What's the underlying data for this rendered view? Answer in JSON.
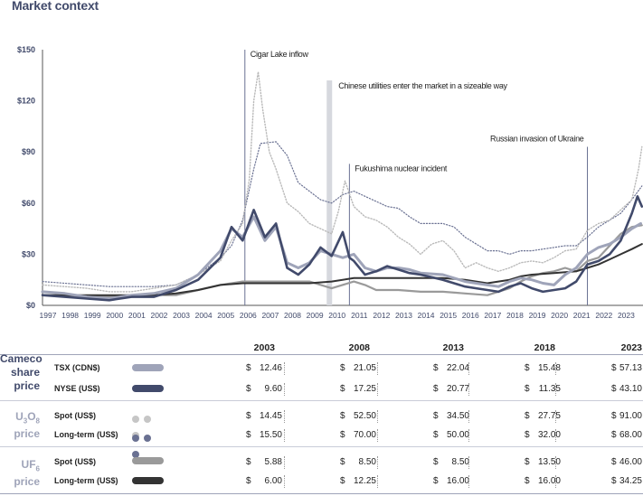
{
  "title": "Market context",
  "colors": {
    "tsx": "#9fa4b9",
    "nyse": "#414a6b",
    "spot_u3o8": "#b9b9b9",
    "lt_u3o8": "#6a7192",
    "spot_uf6": "#9a9a9a",
    "lt_uf6": "#333333",
    "group": "#414a6b",
    "group_light": "#9fa4b9"
  },
  "chart_data": {
    "type": "line",
    "title": "Market context",
    "ylim": [
      0,
      150
    ],
    "xlim": [
      1997,
      2024
    ],
    "y_ticks": [
      "$0",
      "$30",
      "$60",
      "$90",
      "$120",
      "$150"
    ],
    "x_ticks": [
      "1997",
      "1998",
      "1999",
      "2000",
      "2001",
      "2002",
      "2003",
      "2004",
      "2005",
      "2006",
      "2007",
      "2008",
      "2009",
      "2010",
      "2011",
      "2012",
      "2013",
      "2014",
      "2015",
      "2016",
      "2017",
      "2018",
      "2019",
      "2020",
      "2021",
      "2022",
      "2023"
    ],
    "annotations": [
      {
        "label": "Cigar Lake  inflow",
        "x": 2006.1,
        "kind": "line"
      },
      {
        "label": "Chinese utilities enter the market in a sizeable way",
        "x": 2009.9,
        "kind": "band"
      },
      {
        "label": "Fukushima nuclear incident",
        "x": 2010.8,
        "kind": "line"
      },
      {
        "label": "Russian invasion of Ukraine",
        "x": 2021.5,
        "kind": "line"
      }
    ],
    "series": [
      {
        "name": "TSX (CDN$)",
        "key": "tsx",
        "style": "solid",
        "width": 3,
        "points": [
          [
            1997,
            8
          ],
          [
            1998,
            7
          ],
          [
            1999,
            5
          ],
          [
            2000,
            4
          ],
          [
            2001,
            6
          ],
          [
            2002,
            7
          ],
          [
            2003,
            10
          ],
          [
            2004,
            18
          ],
          [
            2005,
            32
          ],
          [
            2005.5,
            45
          ],
          [
            2006,
            40
          ],
          [
            2006.5,
            52
          ],
          [
            2007,
            38
          ],
          [
            2007.5,
            46
          ],
          [
            2008,
            25
          ],
          [
            2008.5,
            22
          ],
          [
            2009,
            25
          ],
          [
            2009.5,
            32
          ],
          [
            2010,
            30
          ],
          [
            2010.5,
            28
          ],
          [
            2011,
            30
          ],
          [
            2011.5,
            22
          ],
          [
            2012,
            20
          ],
          [
            2012.5,
            22
          ],
          [
            2013,
            22
          ],
          [
            2013.5,
            21
          ],
          [
            2014,
            19
          ],
          [
            2015,
            18
          ],
          [
            2015.5,
            16
          ],
          [
            2016,
            14
          ],
          [
            2016.5,
            13
          ],
          [
            2017,
            12
          ],
          [
            2017.5,
            11
          ],
          [
            2018,
            14
          ],
          [
            2018.5,
            16
          ],
          [
            2019,
            15
          ],
          [
            2019.5,
            13
          ],
          [
            2020,
            12
          ],
          [
            2020.5,
            18
          ],
          [
            2021,
            22
          ],
          [
            2021.5,
            30
          ],
          [
            2022,
            34
          ],
          [
            2022.5,
            36
          ],
          [
            2023,
            40
          ],
          [
            2023.5,
            45
          ],
          [
            2023.9,
            48
          ]
        ]
      },
      {
        "name": "NYSE (US$)",
        "key": "nyse",
        "style": "solid",
        "width": 2.6,
        "points": [
          [
            1997,
            6
          ],
          [
            1998,
            5
          ],
          [
            1999,
            4
          ],
          [
            2000,
            3
          ],
          [
            2001,
            5
          ],
          [
            2002,
            5
          ],
          [
            2003,
            9
          ],
          [
            2004,
            15
          ],
          [
            2005,
            28
          ],
          [
            2005.5,
            46
          ],
          [
            2006,
            38
          ],
          [
            2006.5,
            56
          ],
          [
            2007,
            40
          ],
          [
            2007.5,
            48
          ],
          [
            2008,
            22
          ],
          [
            2008.5,
            18
          ],
          [
            2009,
            24
          ],
          [
            2009.5,
            34
          ],
          [
            2010,
            29
          ],
          [
            2010.5,
            43
          ],
          [
            2010.8,
            28
          ],
          [
            2011,
            26
          ],
          [
            2011.5,
            18
          ],
          [
            2012,
            20
          ],
          [
            2012.5,
            23
          ],
          [
            2013,
            21
          ],
          [
            2013.5,
            19
          ],
          [
            2014,
            18
          ],
          [
            2015,
            15
          ],
          [
            2015.5,
            13
          ],
          [
            2016,
            11
          ],
          [
            2016.5,
            10
          ],
          [
            2017,
            9
          ],
          [
            2017.5,
            8
          ],
          [
            2018,
            11
          ],
          [
            2018.5,
            13
          ],
          [
            2019,
            10
          ],
          [
            2019.5,
            8
          ],
          [
            2020,
            9
          ],
          [
            2020.5,
            10
          ],
          [
            2021,
            14
          ],
          [
            2021.5,
            24
          ],
          [
            2022,
            26
          ],
          [
            2022.5,
            30
          ],
          [
            2023,
            38
          ],
          [
            2023.5,
            54
          ],
          [
            2023.75,
            64
          ],
          [
            2023.95,
            58
          ]
        ]
      },
      {
        "name": "Spot (US$)",
        "key": "spot_u3o8",
        "style": "dotted",
        "width": 1.4,
        "points": [
          [
            1997,
            12
          ],
          [
            1998,
            11
          ],
          [
            1999,
            10
          ],
          [
            2000,
            8
          ],
          [
            2001,
            8
          ],
          [
            2002,
            10
          ],
          [
            2003,
            12
          ],
          [
            2004,
            18
          ],
          [
            2005,
            26
          ],
          [
            2005.5,
            38
          ],
          [
            2006,
            48
          ],
          [
            2006.3,
            74
          ],
          [
            2006.5,
            120
          ],
          [
            2006.7,
            137
          ],
          [
            2006.9,
            115
          ],
          [
            2007.2,
            90
          ],
          [
            2007.5,
            80
          ],
          [
            2008,
            60
          ],
          [
            2008.5,
            55
          ],
          [
            2009,
            48
          ],
          [
            2009.5,
            45
          ],
          [
            2010,
            42
          ],
          [
            2010.3,
            55
          ],
          [
            2010.6,
            73
          ],
          [
            2011,
            58
          ],
          [
            2011.5,
            52
          ],
          [
            2012,
            50
          ],
          [
            2012.5,
            46
          ],
          [
            2013,
            40
          ],
          [
            2013.5,
            36
          ],
          [
            2014,
            30
          ],
          [
            2014.5,
            36
          ],
          [
            2015,
            38
          ],
          [
            2015.5,
            32
          ],
          [
            2016,
            22
          ],
          [
            2016.5,
            25
          ],
          [
            2017,
            22
          ],
          [
            2017.5,
            20
          ],
          [
            2018,
            22
          ],
          [
            2018.5,
            25
          ],
          [
            2019,
            26
          ],
          [
            2019.5,
            25
          ],
          [
            2020,
            28
          ],
          [
            2020.5,
            32
          ],
          [
            2021,
            33
          ],
          [
            2021.5,
            44
          ],
          [
            2022,
            48
          ],
          [
            2022.5,
            50
          ],
          [
            2023,
            56
          ],
          [
            2023.5,
            62
          ],
          [
            2023.8,
            80
          ],
          [
            2023.95,
            93
          ]
        ]
      },
      {
        "name": "Long-term (US$)",
        "key": "lt_u3o8",
        "style": "dotted",
        "width": 1.2,
        "points": [
          [
            1997,
            14
          ],
          [
            1998,
            13
          ],
          [
            1999,
            12
          ],
          [
            2000,
            11
          ],
          [
            2001,
            11
          ],
          [
            2002,
            11
          ],
          [
            2003,
            12
          ],
          [
            2004,
            18
          ],
          [
            2005,
            28
          ],
          [
            2005.5,
            35
          ],
          [
            2006,
            50
          ],
          [
            2006.5,
            80
          ],
          [
            2006.8,
            95
          ],
          [
            2007.5,
            96
          ],
          [
            2008,
            88
          ],
          [
            2008.5,
            72
          ],
          [
            2009,
            67
          ],
          [
            2009.5,
            62
          ],
          [
            2010,
            60
          ],
          [
            2010.5,
            65
          ],
          [
            2011,
            67
          ],
          [
            2011.5,
            64
          ],
          [
            2012,
            61
          ],
          [
            2012.5,
            58
          ],
          [
            2013,
            57
          ],
          [
            2013.5,
            52
          ],
          [
            2014,
            48
          ],
          [
            2015,
            48
          ],
          [
            2015.5,
            46
          ],
          [
            2016,
            40
          ],
          [
            2016.5,
            36
          ],
          [
            2017,
            32
          ],
          [
            2017.5,
            32
          ],
          [
            2018,
            30
          ],
          [
            2018.5,
            32
          ],
          [
            2019,
            32
          ],
          [
            2019.5,
            33
          ],
          [
            2020,
            34
          ],
          [
            2020.5,
            35
          ],
          [
            2021,
            35
          ],
          [
            2021.5,
            40
          ],
          [
            2022,
            46
          ],
          [
            2022.5,
            50
          ],
          [
            2023,
            54
          ],
          [
            2023.5,
            62
          ],
          [
            2023.95,
            70
          ]
        ]
      },
      {
        "name": "UF6 Spot (US$)",
        "key": "spot_uf6",
        "style": "solid",
        "width": 2.2,
        "points": [
          [
            1997,
            6
          ],
          [
            1998,
            6
          ],
          [
            1999,
            5
          ],
          [
            2000,
            5
          ],
          [
            2001,
            5
          ],
          [
            2002,
            6
          ],
          [
            2003,
            6
          ],
          [
            2004,
            9
          ],
          [
            2005,
            12
          ],
          [
            2006,
            14
          ],
          [
            2008,
            14
          ],
          [
            2009,
            14
          ],
          [
            2010,
            10
          ],
          [
            2011,
            14
          ],
          [
            2011.5,
            12
          ],
          [
            2012,
            9
          ],
          [
            2013,
            9
          ],
          [
            2014,
            8
          ],
          [
            2015,
            8
          ],
          [
            2016,
            7
          ],
          [
            2017,
            6
          ],
          [
            2018,
            10
          ],
          [
            2018.5,
            14
          ],
          [
            2019,
            17
          ],
          [
            2019.5,
            19
          ],
          [
            2020,
            20
          ],
          [
            2020.5,
            22
          ],
          [
            2021,
            20
          ],
          [
            2021.5,
            26
          ],
          [
            2022,
            28
          ],
          [
            2022.5,
            35
          ],
          [
            2023,
            42
          ],
          [
            2023.5,
            46
          ],
          [
            2023.95,
            47
          ]
        ]
      },
      {
        "name": "UF6 Long-term (US$)",
        "key": "lt_uf6",
        "style": "solid",
        "width": 2,
        "points": [
          [
            1997,
            6
          ],
          [
            1998,
            6
          ],
          [
            1999,
            6
          ],
          [
            2000,
            6
          ],
          [
            2001,
            6
          ],
          [
            2002,
            6
          ],
          [
            2003,
            7
          ],
          [
            2004,
            9
          ],
          [
            2005,
            12
          ],
          [
            2006,
            13
          ],
          [
            2007,
            13
          ],
          [
            2008,
            13
          ],
          [
            2009,
            13
          ],
          [
            2010,
            14
          ],
          [
            2011,
            16
          ],
          [
            2012,
            16
          ],
          [
            2013,
            16
          ],
          [
            2014,
            16
          ],
          [
            2015,
            16
          ],
          [
            2016,
            15
          ],
          [
            2017,
            13
          ],
          [
            2018,
            15
          ],
          [
            2018.5,
            17
          ],
          [
            2019,
            18
          ],
          [
            2020,
            19
          ],
          [
            2021,
            20
          ],
          [
            2021.5,
            22
          ],
          [
            2022,
            24
          ],
          [
            2022.5,
            27
          ],
          [
            2023,
            30
          ],
          [
            2023.5,
            33
          ],
          [
            2023.95,
            36
          ]
        ]
      }
    ]
  },
  "table": {
    "years": [
      "2003",
      "2008",
      "2013",
      "2018",
      "2023"
    ],
    "groups": [
      {
        "label": [
          "Cameco",
          "share",
          "price"
        ],
        "rows": [
          {
            "label": "TSX (CDN$)",
            "key": "tsx",
            "legend": "bar",
            "values": [
              "12.46",
              "21.05",
              "22.04",
              "15.48",
              "57.13"
            ]
          },
          {
            "label": "NYSE (US$)",
            "key": "nyse",
            "legend": "bar",
            "values": [
              "9.60",
              "17.25",
              "20.77",
              "11.35",
              "43.10"
            ]
          }
        ]
      },
      {
        "label": [
          "U3O8",
          "price"
        ],
        "rows": [
          {
            "label": "Spot (US$)",
            "key": "spot_u3o8",
            "legend": "dots",
            "values": [
              "14.45",
              "52.50",
              "34.50",
              "27.75",
              "91.00"
            ]
          },
          {
            "label": "Long-term (US$)",
            "key": "lt_u3o8",
            "legend": "dots",
            "values": [
              "15.50",
              "70.00",
              "50.00",
              "32.00",
              "68.00"
            ]
          }
        ]
      },
      {
        "label": [
          "UF6",
          "price"
        ],
        "rows": [
          {
            "label": "Spot (US$)",
            "key": "spot_uf6",
            "legend": "bar",
            "values": [
              "5.88",
              "8.50",
              "8.50",
              "13.50",
              "46.00"
            ]
          },
          {
            "label": "Long-term (US$)",
            "key": "lt_uf6",
            "legend": "bar",
            "values": [
              "6.00",
              "12.25",
              "16.00",
              "16.00",
              "34.25"
            ]
          }
        ]
      }
    ],
    "currency": "$"
  }
}
